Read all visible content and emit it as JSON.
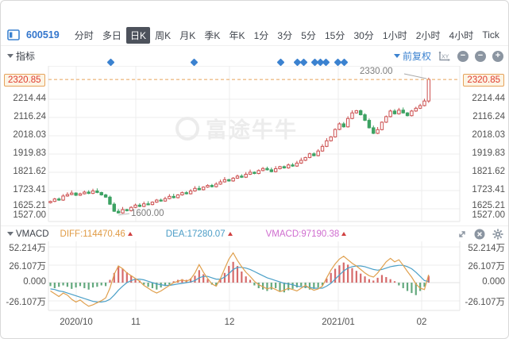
{
  "toolbar": {
    "stock_code": "600519",
    "tabs": [
      {
        "label": "分时",
        "selected": false
      },
      {
        "label": "多日",
        "selected": false
      },
      {
        "label": "日K",
        "selected": true
      },
      {
        "label": "周K",
        "selected": false
      },
      {
        "label": "月K",
        "selected": false
      },
      {
        "label": "季K",
        "selected": false
      },
      {
        "label": "年K",
        "selected": false
      },
      {
        "label": "1分",
        "selected": false
      },
      {
        "label": "3分",
        "selected": false
      },
      {
        "label": "5分",
        "selected": false
      },
      {
        "label": "15分",
        "selected": false
      },
      {
        "label": "30分",
        "selected": false
      },
      {
        "label": "1小时",
        "selected": false
      },
      {
        "label": "2小时",
        "selected": false
      },
      {
        "label": "4小时",
        "selected": false
      },
      {
        "label": "Tick",
        "selected": false
      }
    ]
  },
  "indicator_bar": {
    "label": "指标",
    "adjust_label": "前复权"
  },
  "main_chart": {
    "last_price_label": "2320.85",
    "high_annotation": "2330.00",
    "low_annotation": "1600.00",
    "y_axis_labels": [
      "2214.44",
      "2116.24",
      "2018.03",
      "1919.83",
      "1821.62",
      "1723.41",
      "1625.21",
      "1527.00"
    ],
    "x_axis_labels": [
      "2020/10",
      "11",
      "12",
      "2021/01",
      "02"
    ],
    "watermark_text": "富途牛牛"
  },
  "vmacd_bar": {
    "label": "VMACD",
    "diff_label": "DIFF:114470.46",
    "dea_label": "DEA:17280.07",
    "vmacd_label": "VMACD:97190.38",
    "y_axis_labels": [
      "52.214万",
      "26.107万",
      "0.000",
      "-26.107万"
    ]
  },
  "colors": {
    "up_candle": "#cc4f4f",
    "down_candle": "#3da263",
    "diff_line": "#e0a04e",
    "dea_line": "#4ba0c8",
    "hist_pos": "#d66a6a",
    "hist_neg": "#63a97e",
    "dashed_level": "#e6a25a",
    "grid": "#ececec",
    "accent_blue": "#3b82d0"
  },
  "chart_data": {
    "type": "candlestick+macd",
    "main": {
      "first_open": 1658,
      "closes": [
        1665,
        1678,
        1672,
        1694,
        1702,
        1710,
        1698,
        1706,
        1715,
        1708,
        1721,
        1713,
        1700,
        1688,
        1650,
        1612,
        1603,
        1621,
        1615,
        1633,
        1645,
        1638,
        1652,
        1648,
        1661,
        1672,
        1667,
        1680,
        1692,
        1685,
        1700,
        1712,
        1706,
        1721,
        1735,
        1728,
        1742,
        1751,
        1744,
        1758,
        1770,
        1782,
        1775,
        1790,
        1801,
        1795,
        1811,
        1822,
        1815,
        1831,
        1842,
        1835,
        1825,
        1841,
        1852,
        1845,
        1861,
        1855,
        1871,
        1886,
        1901,
        1921,
        1911,
        1936,
        1961,
        1991,
        2012,
        2052,
        2082,
        2066,
        2111,
        2141,
        2153,
        2131,
        2101,
        2061,
        2031,
        2051,
        2091,
        2121,
        2151,
        2136,
        2156,
        2141,
        2126,
        2151,
        2166,
        2180,
        2205,
        2320.85
      ],
      "low_mark": {
        "index": 16,
        "price": 1600
      },
      "last_candle": {
        "open": 2205,
        "close": 2320.85,
        "high": 2330,
        "low": 2195
      },
      "dashed_level": 2320.85,
      "price_gridlines": [
        2214.44,
        2116.24,
        2018.03,
        1919.83,
        1821.62,
        1723.41,
        1625.21
      ],
      "event_marker_x": [
        138,
        243,
        352,
        373,
        381,
        395,
        402,
        409,
        424,
        432
      ]
    },
    "vmacd": {
      "unit": "万",
      "hist": [
        -5,
        -8,
        -6,
        -4,
        -6,
        -9,
        -7,
        -5,
        -8,
        -10,
        -7,
        -6,
        -4,
        -5,
        4,
        14,
        24,
        20,
        15,
        10,
        6,
        3,
        -3,
        -6,
        -8,
        -10,
        -7,
        -5,
        -3,
        2,
        4,
        5,
        4,
        6,
        10,
        18,
        12,
        5,
        -3,
        -5,
        5,
        14,
        24,
        30,
        24,
        16,
        9,
        4,
        -4,
        -8,
        -10,
        -12,
        -10,
        -8,
        -12,
        -14,
        -11,
        -9,
        -7,
        -5,
        -8,
        -10,
        -9,
        -7,
        -4,
        6,
        14,
        20,
        25,
        29,
        26,
        21,
        17,
        13,
        9,
        5,
        3,
        7,
        11,
        8,
        5,
        2,
        -4,
        -8,
        -12,
        -15,
        -18,
        -12,
        -6,
        9.7
      ],
      "diff": [
        -12,
        -16,
        -20,
        -15,
        -18,
        -24,
        -28,
        -25,
        -30,
        -34,
        -32,
        -29,
        -26,
        -22,
        -8,
        12,
        24,
        20,
        14,
        10,
        6,
        2,
        -4,
        -8,
        -12,
        -15,
        -12,
        -8,
        -4,
        0,
        2,
        4,
        2,
        5,
        14,
        26,
        15,
        6,
        -2,
        -5,
        6,
        20,
        34,
        43,
        32,
        23,
        15,
        9,
        2,
        -3,
        -6,
        -9,
        -7,
        -10,
        -13,
        -11,
        -8,
        -10,
        -12,
        -8,
        -4,
        -8,
        -11,
        -9,
        -5,
        7,
        18,
        27,
        34,
        38,
        33,
        28,
        24,
        19,
        14,
        10,
        8,
        14,
        22,
        30,
        35,
        30,
        33,
        25,
        16,
        8,
        -2,
        -8,
        -10,
        11.4
      ],
      "dea": [
        -9,
        -10,
        -12,
        -13,
        -15,
        -17,
        -19,
        -21,
        -23,
        -25,
        -27,
        -28,
        -28,
        -27,
        -24,
        -18,
        -11,
        -5,
        0,
        3,
        5,
        5,
        4,
        2,
        0,
        -2,
        -3,
        -4,
        -4,
        -3,
        -2,
        -1,
        0,
        1,
        3,
        7,
        9,
        9,
        7,
        5,
        5,
        8,
        13,
        19,
        22,
        22,
        21,
        19,
        16,
        13,
        10,
        7,
        5,
        3,
        1,
        -1,
        -2,
        -3,
        -5,
        -6,
        -6,
        -7,
        -8,
        -8,
        -8,
        -5,
        -1,
        5,
        11,
        17,
        21,
        23,
        24,
        24,
        23,
        21,
        19,
        18,
        19,
        21,
        23,
        24,
        25,
        25,
        23,
        20,
        15,
        9,
        3,
        1.7
      ]
    }
  }
}
